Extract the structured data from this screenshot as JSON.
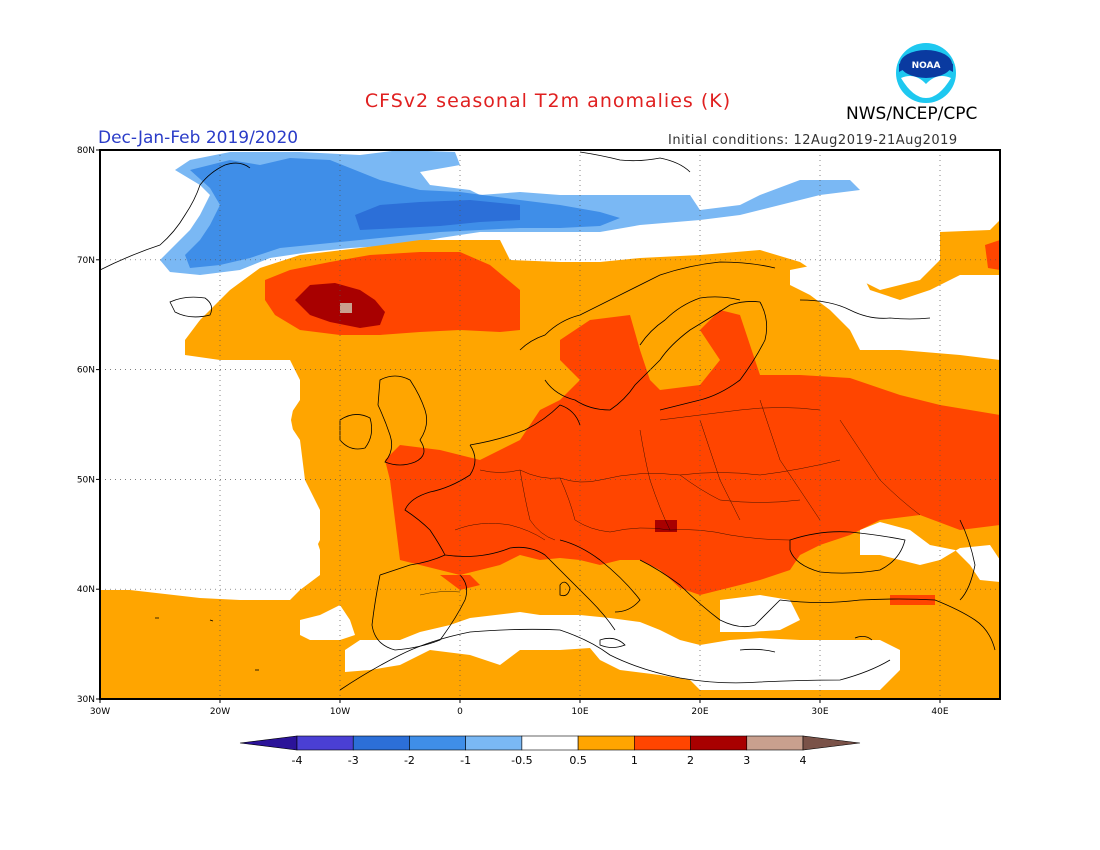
{
  "header": {
    "title": "CFSv2 seasonal T2m anomalies (K)",
    "season": "Dec-Jan-Feb 2019/2020",
    "initial_conditions": "Initial conditions: 12Aug2019-21Aug2019",
    "agency": "NWS/NCEP/CPC",
    "logo_text": "NOAA"
  },
  "map": {
    "lon_range": [
      -30,
      45
    ],
    "lat_range": [
      30,
      80
    ],
    "lon_ticks": [
      "30W",
      "20W",
      "10W",
      "0",
      "10E",
      "20E",
      "30E",
      "40E"
    ],
    "lat_ticks": [
      "30N",
      "40N",
      "50N",
      "60N",
      "70N",
      "80N"
    ]
  },
  "colorbar": {
    "labels": [
      "-4",
      "-3",
      "-2",
      "-1",
      "-0.5",
      "0.5",
      "1",
      "2",
      "3",
      "4"
    ],
    "colors": [
      "#2b1399",
      "#4a3fd4",
      "#2c6fd8",
      "#3f8ee8",
      "#7ab8f4",
      "#ffffff",
      "#ffa500",
      "#ff4500",
      "#a80000",
      "#c9a08e",
      "#7a5248"
    ]
  }
}
